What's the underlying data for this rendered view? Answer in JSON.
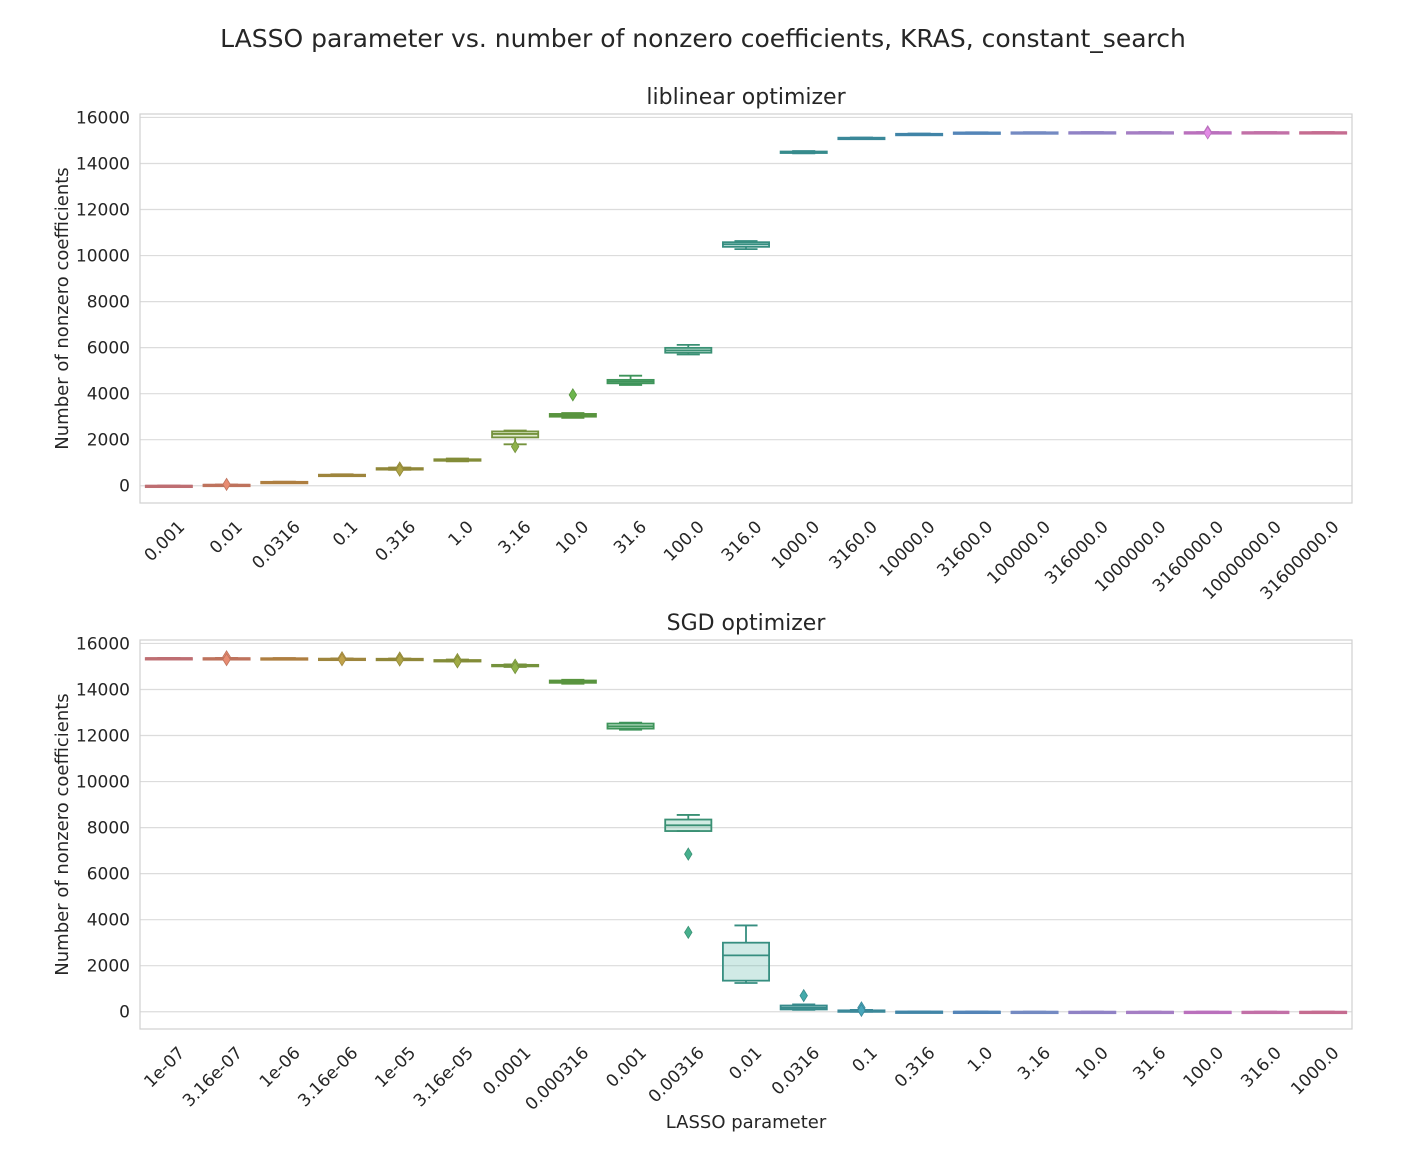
{
  "figure": {
    "title": "LASSO parameter vs. number of nonzero coefficients, KRAS, constant_search"
  },
  "chart_data": [
    {
      "type": "box",
      "title": "liblinear optimizer",
      "xlabel": "",
      "ylabel": "Number of nonzero coefficients",
      "ylim": [
        -750,
        16150
      ],
      "yticks": [
        0,
        2000,
        4000,
        6000,
        8000,
        10000,
        12000,
        14000,
        16000
      ],
      "grid": true,
      "categories": [
        "0.001",
        "0.01",
        "0.0316",
        "0.1",
        "0.316",
        "1.0",
        "3.16",
        "10.0",
        "31.6",
        "100.0",
        "316.0",
        "1000.0",
        "3160.0",
        "10000.0",
        "31600.0",
        "100000.0",
        "316000.0",
        "1000000.0",
        "3160000.0",
        "10000000.0",
        "31600000.0"
      ],
      "colors": [
        "#e8868b",
        "#e88c72",
        "#d49a4e",
        "#c1a24a",
        "#b0a546",
        "#a0ab44",
        "#8fb24a",
        "#6cb54d",
        "#4cb46e",
        "#47b08d",
        "#42ad9c",
        "#43aaab",
        "#48a6bb",
        "#4fa2cc",
        "#66a2e0",
        "#8ea8ec",
        "#b09ff0",
        "#c99aef",
        "#e38ae6",
        "#ed88cc",
        "#f084b0"
      ],
      "boxes": [
        {
          "whislo": -10,
          "q1": -5,
          "median": 0,
          "q3": 5,
          "whishi": 10,
          "fliers": []
        },
        {
          "whislo": 30,
          "q1": 35,
          "median": 40,
          "q3": 45,
          "whishi": 50,
          "fliers": [
            60
          ]
        },
        {
          "whislo": 140,
          "q1": 150,
          "median": 160,
          "q3": 170,
          "whishi": 180,
          "fliers": []
        },
        {
          "whislo": 420,
          "q1": 440,
          "median": 460,
          "q3": 480,
          "whishi": 500,
          "fliers": []
        },
        {
          "whislo": 690,
          "q1": 715,
          "median": 740,
          "q3": 765,
          "whishi": 790,
          "fliers": [
            770,
            680
          ]
        },
        {
          "whislo": 1060,
          "q1": 1090,
          "median": 1120,
          "q3": 1150,
          "whishi": 1180,
          "fliers": []
        },
        {
          "whislo": 1800,
          "q1": 2100,
          "median": 2250,
          "q3": 2360,
          "whishi": 2400,
          "fliers": [
            1700
          ]
        },
        {
          "whislo": 2950,
          "q1": 3000,
          "median": 3060,
          "q3": 3120,
          "whishi": 3160,
          "fliers": [
            3950
          ]
        },
        {
          "whislo": 4380,
          "q1": 4450,
          "median": 4530,
          "q3": 4600,
          "whishi": 4780,
          "fliers": []
        },
        {
          "whislo": 5700,
          "q1": 5780,
          "median": 5880,
          "q3": 5990,
          "whishi": 6120,
          "fliers": []
        },
        {
          "whislo": 10280,
          "q1": 10380,
          "median": 10490,
          "q3": 10580,
          "whishi": 10630,
          "fliers": []
        },
        {
          "whislo": 14440,
          "q1": 14470,
          "median": 14500,
          "q3": 14520,
          "whishi": 14540,
          "fliers": []
        },
        {
          "whislo": 15060,
          "q1": 15080,
          "median": 15100,
          "q3": 15120,
          "whishi": 15130,
          "fliers": []
        },
        {
          "whislo": 15250,
          "q1": 15265,
          "median": 15280,
          "q3": 15290,
          "whishi": 15300,
          "fliers": []
        },
        {
          "whislo": 15320,
          "q1": 15330,
          "median": 15340,
          "q3": 15348,
          "whishi": 15355,
          "fliers": []
        },
        {
          "whislo": 15340,
          "q1": 15345,
          "median": 15350,
          "q3": 15355,
          "whishi": 15360,
          "fliers": []
        },
        {
          "whislo": 15345,
          "q1": 15350,
          "median": 15355,
          "q3": 15360,
          "whishi": 15365,
          "fliers": []
        },
        {
          "whislo": 15345,
          "q1": 15350,
          "median": 15355,
          "q3": 15360,
          "whishi": 15365,
          "fliers": []
        },
        {
          "whislo": 15345,
          "q1": 15350,
          "median": 15355,
          "q3": 15360,
          "whishi": 15365,
          "fliers": [
            15380,
            15330
          ]
        },
        {
          "whislo": 15345,
          "q1": 15350,
          "median": 15355,
          "q3": 15360,
          "whishi": 15365,
          "fliers": []
        },
        {
          "whislo": 15345,
          "q1": 15350,
          "median": 15355,
          "q3": 15360,
          "whishi": 15365,
          "fliers": []
        }
      ]
    },
    {
      "type": "box",
      "title": "SGD optimizer",
      "xlabel": "LASSO parameter",
      "ylabel": "Number of nonzero coefficients",
      "ylim": [
        -750,
        16150
      ],
      "yticks": [
        0,
        2000,
        4000,
        6000,
        8000,
        10000,
        12000,
        14000,
        16000
      ],
      "grid": true,
      "categories": [
        "1e-07",
        "3.16e-07",
        "1e-06",
        "3.16e-06",
        "1e-05",
        "3.16e-05",
        "0.0001",
        "0.000316",
        "0.001",
        "0.00316",
        "0.01",
        "0.0316",
        "0.1",
        "0.316",
        "1.0",
        "3.16",
        "10.0",
        "31.6",
        "100.0",
        "316.0",
        "1000.0"
      ],
      "colors": [
        "#e8868b",
        "#e88c72",
        "#d49a4e",
        "#c1a24a",
        "#b0a546",
        "#a0ab44",
        "#8fb24a",
        "#6cb54d",
        "#4cb46e",
        "#47b08d",
        "#42ad9c",
        "#43aaab",
        "#48a6bb",
        "#4fa2cc",
        "#66a2e0",
        "#8ea8ec",
        "#b09ff0",
        "#c99aef",
        "#e38ae6",
        "#ed88cc",
        "#f084b0"
      ],
      "boxes": [
        {
          "whislo": 15350,
          "q1": 15355,
          "median": 15360,
          "q3": 15365,
          "whishi": 15370,
          "fliers": []
        },
        {
          "whislo": 15340,
          "q1": 15348,
          "median": 15355,
          "q3": 15362,
          "whishi": 15370,
          "fliers": [
            15420,
            15300
          ]
        },
        {
          "whislo": 15330,
          "q1": 15340,
          "median": 15350,
          "q3": 15358,
          "whishi": 15365,
          "fliers": []
        },
        {
          "whislo": 15310,
          "q1": 15320,
          "median": 15330,
          "q3": 15340,
          "whishi": 15350,
          "fliers": [
            15380,
            15290
          ]
        },
        {
          "whislo": 15290,
          "q1": 15305,
          "median": 15320,
          "q3": 15335,
          "whishi": 15345,
          "fliers": [
            15370,
            15280
          ]
        },
        {
          "whislo": 15220,
          "q1": 15240,
          "median": 15260,
          "q3": 15280,
          "whishi": 15300,
          "fliers": [
            15300,
            15200
          ]
        },
        {
          "whislo": 14980,
          "q1": 15010,
          "median": 15040,
          "q3": 15070,
          "whishi": 15090,
          "fliers": [
            15060,
            14950
          ]
        },
        {
          "whislo": 14250,
          "q1": 14290,
          "median": 14340,
          "q3": 14390,
          "whishi": 14420,
          "fliers": []
        },
        {
          "whislo": 12250,
          "q1": 12300,
          "median": 12400,
          "q3": 12520,
          "whishi": 12560,
          "fliers": []
        },
        {
          "whislo": 7850,
          "q1": 7850,
          "median": 8100,
          "q3": 8350,
          "whishi": 8550,
          "fliers": [
            6850,
            3450
          ]
        },
        {
          "whislo": 1250,
          "q1": 1350,
          "median": 2450,
          "q3": 3000,
          "whishi": 3750,
          "fliers": []
        },
        {
          "whislo": 80,
          "q1": 100,
          "median": 180,
          "q3": 270,
          "whishi": 320,
          "fliers": [
            700
          ]
        },
        {
          "whislo": 0,
          "q1": 10,
          "median": 30,
          "q3": 60,
          "whishi": 80,
          "fliers": [
            170,
            60
          ]
        },
        {
          "whislo": 0,
          "q1": 0,
          "median": 5,
          "q3": 10,
          "whishi": 15,
          "fliers": []
        },
        {
          "whislo": 0,
          "q1": 0,
          "median": 2,
          "q3": 5,
          "whishi": 8,
          "fliers": []
        },
        {
          "whislo": 0,
          "q1": 0,
          "median": 0,
          "q3": 3,
          "whishi": 5,
          "fliers": []
        },
        {
          "whislo": 0,
          "q1": 0,
          "median": 0,
          "q3": 2,
          "whishi": 4,
          "fliers": []
        },
        {
          "whislo": 0,
          "q1": 0,
          "median": 0,
          "q3": 2,
          "whishi": 4,
          "fliers": []
        },
        {
          "whislo": 0,
          "q1": 0,
          "median": 0,
          "q3": 2,
          "whishi": 4,
          "fliers": []
        },
        {
          "whislo": 0,
          "q1": 0,
          "median": 0,
          "q3": 2,
          "whishi": 4,
          "fliers": []
        },
        {
          "whislo": 0,
          "q1": 0,
          "median": 0,
          "q3": 2,
          "whishi": 4,
          "fliers": []
        }
      ]
    }
  ]
}
